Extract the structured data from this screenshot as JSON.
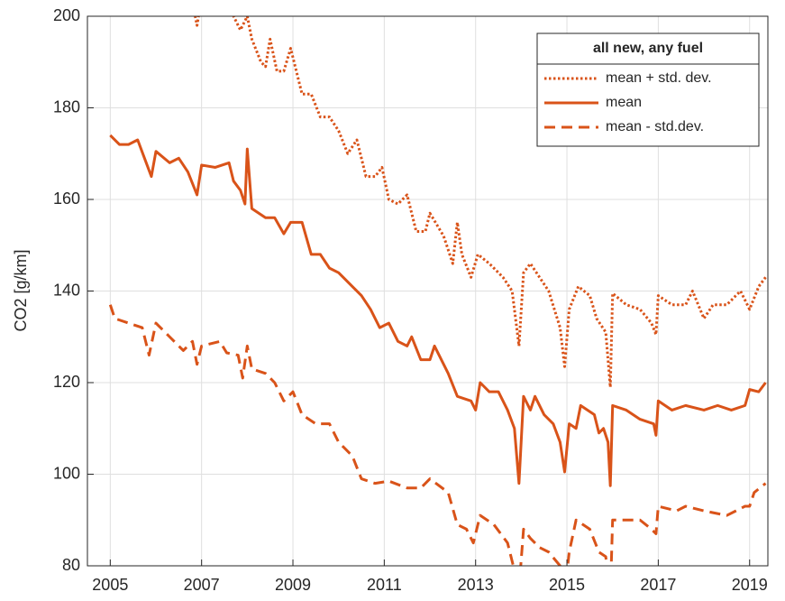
{
  "chart_data": {
    "type": "line",
    "ylabel": "CO2 [g/km]",
    "legend_title": "all new, any fuel",
    "legend": "northeast",
    "grid": true,
    "xlim": [
      2004.5,
      2019.4
    ],
    "xticks": [
      2005,
      2007,
      2009,
      2011,
      2013,
      2015,
      2017,
      2019
    ],
    "ylim": [
      80,
      200
    ],
    "yticks": [
      80,
      100,
      120,
      140,
      160,
      180,
      200
    ],
    "series": [
      {
        "name": "mean + std. dev.",
        "color": "#d95319",
        "style": "dotted",
        "x": [
          2006.8,
          2006.9,
          2007.0,
          2007.5,
          2007.7,
          2007.85,
          2008.0,
          2008.1,
          2008.3,
          2008.4,
          2008.5,
          2008.65,
          2008.8,
          2008.95,
          2009.2,
          2009.4,
          2009.6,
          2009.8,
          2010.0,
          2010.2,
          2010.4,
          2010.6,
          2010.8,
          2010.95,
          2011.1,
          2011.3,
          2011.5,
          2011.7,
          2011.9,
          2012.0,
          2012.3,
          2012.5,
          2012.6,
          2012.7,
          2012.9,
          2013.05,
          2013.3,
          2013.6,
          2013.8,
          2013.95,
          2014.05,
          2014.2,
          2014.4,
          2014.6,
          2014.85,
          2014.95,
          2015.05,
          2015.25,
          2015.5,
          2015.65,
          2015.85,
          2015.95,
          2016.0,
          2016.3,
          2016.6,
          2016.85,
          2016.95,
          2017.0,
          2017.3,
          2017.6,
          2017.75,
          2018.0,
          2018.2,
          2018.5,
          2018.8,
          2019.0,
          2019.2,
          2019.35
        ],
        "values": [
          203,
          198,
          204,
          206,
          200,
          197,
          200,
          195,
          190,
          189,
          195,
          188,
          188,
          193,
          183,
          183,
          178,
          178,
          175,
          170,
          173,
          165,
          165,
          167,
          160,
          159,
          161,
          153,
          153,
          157,
          152,
          146,
          155,
          148,
          143,
          148,
          146,
          143,
          140,
          128,
          144,
          146,
          143,
          140,
          132,
          123.5,
          136,
          141,
          139,
          134,
          131,
          119,
          139.5,
          137,
          136,
          133,
          130.5,
          139,
          137,
          137,
          140,
          134,
          137,
          137,
          140,
          136,
          141,
          143
        ]
      },
      {
        "name": "mean",
        "color": "#d95319",
        "style": "solid",
        "x": [
          2005.0,
          2005.2,
          2005.4,
          2005.6,
          2005.75,
          2005.9,
          2006.0,
          2006.3,
          2006.5,
          2006.7,
          2006.9,
          2007.0,
          2007.3,
          2007.6,
          2007.7,
          2007.85,
          2007.95,
          2008.0,
          2008.1,
          2008.4,
          2008.6,
          2008.8,
          2008.95,
          2009.2,
          2009.4,
          2009.6,
          2009.8,
          2010.0,
          2010.3,
          2010.5,
          2010.7,
          2010.9,
          2011.1,
          2011.3,
          2011.5,
          2011.6,
          2011.8,
          2012.0,
          2012.1,
          2012.4,
          2012.6,
          2012.9,
          2013.0,
          2013.1,
          2013.3,
          2013.5,
          2013.7,
          2013.85,
          2013.95,
          2014.05,
          2014.2,
          2014.3,
          2014.5,
          2014.7,
          2014.85,
          2014.95,
          2015.05,
          2015.2,
          2015.3,
          2015.6,
          2015.7,
          2015.8,
          2015.9,
          2015.95,
          2016.0,
          2016.3,
          2016.6,
          2016.9,
          2016.95,
          2017.0,
          2017.3,
          2017.6,
          2018.0,
          2018.3,
          2018.6,
          2018.9,
          2019.0,
          2019.2,
          2019.35
        ],
        "values": [
          174,
          172,
          172,
          173,
          169,
          165,
          170.5,
          168,
          169,
          166,
          161,
          167.5,
          167,
          168,
          164,
          162,
          159,
          171,
          158,
          156,
          156,
          152.5,
          155,
          155,
          148,
          148,
          145,
          144,
          141,
          139,
          136,
          132,
          133,
          129,
          128,
          130,
          125,
          125,
          128,
          122,
          117,
          116,
          114,
          120,
          118,
          118,
          114,
          110,
          98,
          117,
          114,
          117,
          113,
          111,
          107,
          100.5,
          111,
          110,
          115,
          113,
          109,
          110,
          107,
          97.5,
          115,
          114,
          112,
          111,
          108.5,
          116,
          114,
          115,
          114,
          115,
          114,
          115,
          118.5,
          118,
          120
        ]
      },
      {
        "name": "mean - std.dev.",
        "color": "#d95319",
        "style": "dashed",
        "x": [
          2005.0,
          2005.1,
          2005.4,
          2005.7,
          2005.85,
          2006.0,
          2006.3,
          2006.6,
          2006.8,
          2006.9,
          2007.0,
          2007.4,
          2007.55,
          2007.8,
          2007.9,
          2008.0,
          2008.1,
          2008.4,
          2008.6,
          2008.8,
          2009.0,
          2009.2,
          2009.5,
          2009.8,
          2010.0,
          2010.3,
          2010.5,
          2010.8,
          2011.1,
          2011.5,
          2011.8,
          2012.0,
          2012.4,
          2012.6,
          2012.8,
          2012.95,
          2013.1,
          2013.4,
          2013.7,
          2013.95,
          2014.05,
          2014.2,
          2014.4,
          2014.6,
          2014.85,
          2014.95,
          2015.05,
          2015.2,
          2015.5,
          2015.7,
          2015.85,
          2015.95,
          2016.0,
          2016.3,
          2016.6,
          2016.85,
          2016.95,
          2017.0,
          2017.4,
          2017.6,
          2018.0,
          2018.5,
          2018.7,
          2018.9,
          2019.0,
          2019.1,
          2019.35
        ],
        "values": [
          137,
          134,
          133,
          132,
          126,
          133,
          130,
          127,
          129,
          124,
          128,
          129,
          126.5,
          126,
          121,
          128,
          123,
          122,
          120,
          116,
          118,
          113,
          111,
          111,
          107,
          104,
          99,
          98,
          98.5,
          97,
          97,
          99,
          96,
          89,
          88,
          85,
          91,
          89,
          85,
          75,
          88,
          86,
          84,
          83,
          80,
          74,
          83,
          90,
          88,
          83,
          82,
          73,
          90,
          90,
          90,
          88,
          87,
          93,
          92,
          93,
          92,
          91,
          92,
          93,
          93,
          96,
          98
        ]
      }
    ]
  }
}
